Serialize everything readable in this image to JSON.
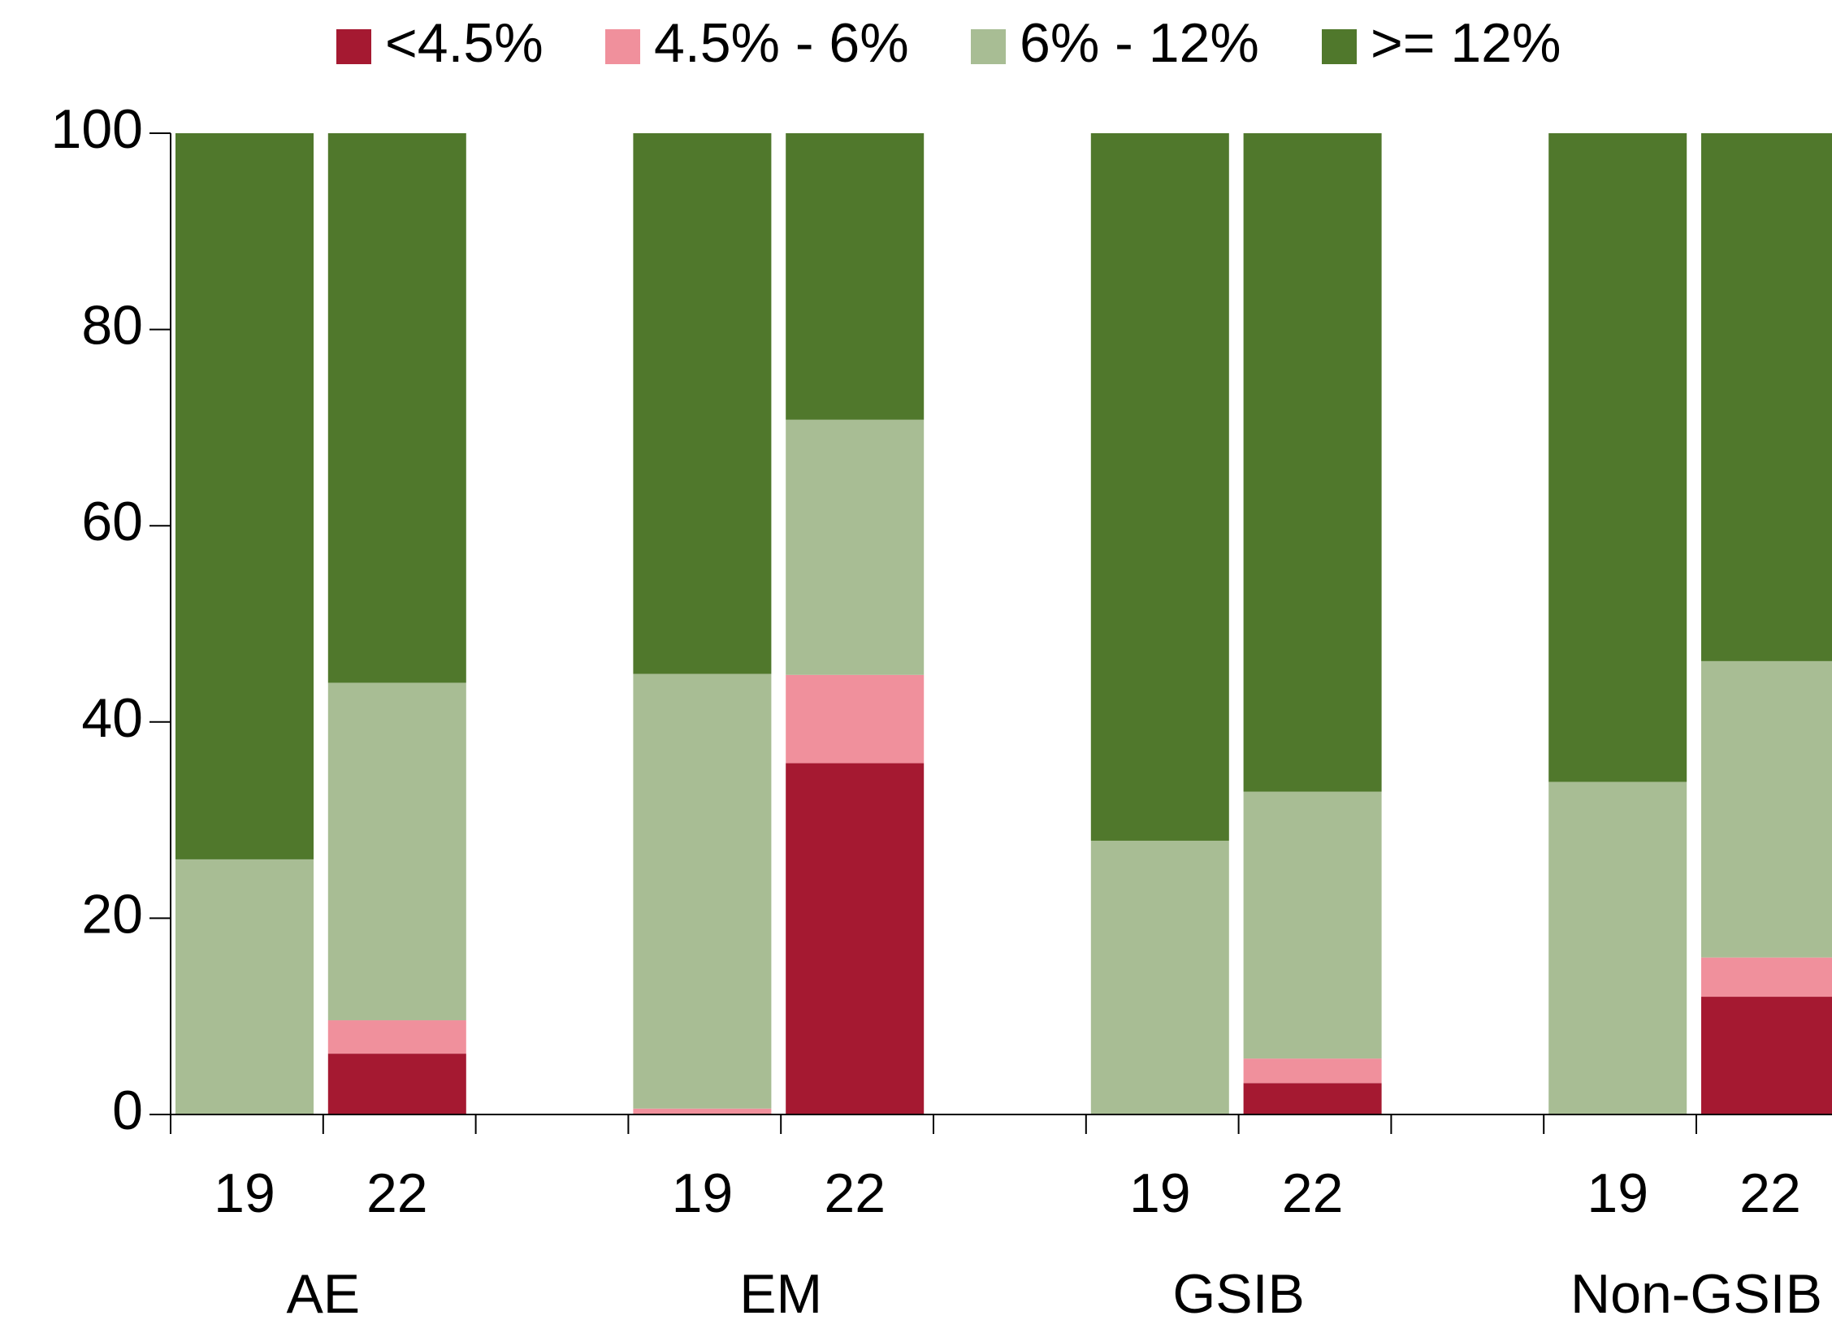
{
  "chart_data": {
    "type": "stacked_bar",
    "categories": [
      "19",
      "22",
      "19",
      "22",
      "19",
      "22",
      "19",
      "22"
    ],
    "groups": [
      "AE",
      "EM",
      "GSIB",
      "Non-GSIB"
    ],
    "series": [
      {
        "name": "<4.5%",
        "color": "#a51931",
        "values": [
          0,
          6.2,
          0,
          35.8,
          0,
          3.2,
          0,
          12.0
        ]
      },
      {
        "name": "4.5% - 6%",
        "color": "#f0909c",
        "values": [
          0,
          3.4,
          0.6,
          9.0,
          0,
          2.5,
          0,
          4.0
        ]
      },
      {
        "name": "6% - 12%",
        "color": "#a8bd94",
        "values": [
          26.0,
          34.4,
          44.3,
          26.0,
          27.9,
          27.2,
          33.9,
          30.2
        ]
      },
      {
        "name": ">= 12%",
        "color": "#50782c",
        "values": [
          74.0,
          56.0,
          55.1,
          29.2,
          72.1,
          67.1,
          66.1,
          53.8
        ]
      }
    ],
    "ylim": [
      0,
      100
    ],
    "yticks": [
      0,
      20,
      40,
      60,
      80,
      100
    ],
    "legend": "top"
  }
}
